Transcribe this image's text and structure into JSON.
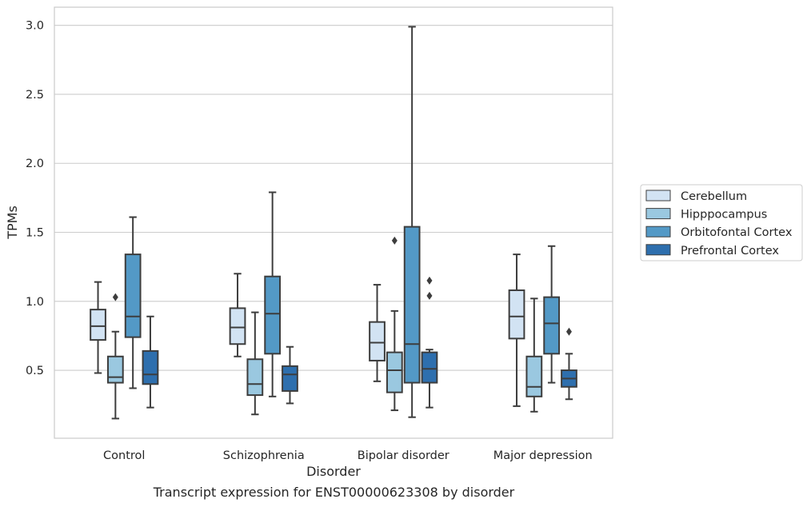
{
  "caption": "Transcript expression for ENST00000623308 by disorder",
  "chart_data": {
    "type": "box",
    "xlabel": "Disorder",
    "ylabel": "TPMs",
    "ylim": [
      0.0,
      3.1
    ],
    "yticks": [
      "0.5",
      "1.0",
      "1.5",
      "2.0",
      "2.5",
      "3.0"
    ],
    "grid": "horizontal",
    "legend_position": "right",
    "categories": [
      "Control",
      "Schizophrenia",
      "Bipolar disorder",
      "Major depression"
    ],
    "series": [
      {
        "name": "Cerebellum",
        "color": "#d2e3f3",
        "boxes": [
          {
            "whisker_low": 0.48,
            "q1": 0.72,
            "median": 0.82,
            "q3": 0.94,
            "whisker_high": 1.14,
            "outliers": []
          },
          {
            "whisker_low": 0.6,
            "q1": 0.69,
            "median": 0.81,
            "q3": 0.95,
            "whisker_high": 1.2,
            "outliers": []
          },
          {
            "whisker_low": 0.42,
            "q1": 0.57,
            "median": 0.7,
            "q3": 0.85,
            "whisker_high": 1.12,
            "outliers": []
          },
          {
            "whisker_low": 0.24,
            "q1": 0.73,
            "median": 0.89,
            "q3": 1.08,
            "whisker_high": 1.34,
            "outliers": []
          }
        ]
      },
      {
        "name": "Hipppocampus",
        "color": "#9ac8e0",
        "boxes": [
          {
            "whisker_low": 0.15,
            "q1": 0.41,
            "median": 0.45,
            "q3": 0.6,
            "whisker_high": 0.78,
            "outliers": [
              1.03
            ]
          },
          {
            "whisker_low": 0.18,
            "q1": 0.32,
            "median": 0.4,
            "q3": 0.58,
            "whisker_high": 0.92,
            "outliers": []
          },
          {
            "whisker_low": 0.21,
            "q1": 0.34,
            "median": 0.5,
            "q3": 0.63,
            "whisker_high": 0.93,
            "outliers": [
              1.44
            ]
          },
          {
            "whisker_low": 0.2,
            "q1": 0.31,
            "median": 0.38,
            "q3": 0.6,
            "whisker_high": 1.02,
            "outliers": []
          }
        ]
      },
      {
        "name": "Orbitofontal Cortex",
        "color": "#5399c6",
        "boxes": [
          {
            "whisker_low": 0.37,
            "q1": 0.74,
            "median": 0.89,
            "q3": 1.34,
            "whisker_high": 1.61,
            "outliers": []
          },
          {
            "whisker_low": 0.31,
            "q1": 0.62,
            "median": 0.91,
            "q3": 1.18,
            "whisker_high": 1.79,
            "outliers": []
          },
          {
            "whisker_low": 0.16,
            "q1": 0.41,
            "median": 0.69,
            "q3": 1.54,
            "whisker_high": 2.99,
            "outliers": []
          },
          {
            "whisker_low": 0.41,
            "q1": 0.62,
            "median": 0.84,
            "q3": 1.03,
            "whisker_high": 1.4,
            "outliers": []
          }
        ]
      },
      {
        "name": "Prefrontal Cortex",
        "color": "#2e6fae",
        "boxes": [
          {
            "whisker_low": 0.23,
            "q1": 0.4,
            "median": 0.47,
            "q3": 0.64,
            "whisker_high": 0.89,
            "outliers": []
          },
          {
            "whisker_low": 0.26,
            "q1": 0.35,
            "median": 0.47,
            "q3": 0.53,
            "whisker_high": 0.67,
            "outliers": []
          },
          {
            "whisker_low": 0.23,
            "q1": 0.41,
            "median": 0.51,
            "q3": 0.63,
            "whisker_high": 0.65,
            "outliers": [
              1.04,
              1.15
            ]
          },
          {
            "whisker_low": 0.29,
            "q1": 0.38,
            "median": 0.44,
            "q3": 0.5,
            "whisker_high": 0.62,
            "outliers": [
              0.78
            ]
          }
        ]
      }
    ]
  }
}
